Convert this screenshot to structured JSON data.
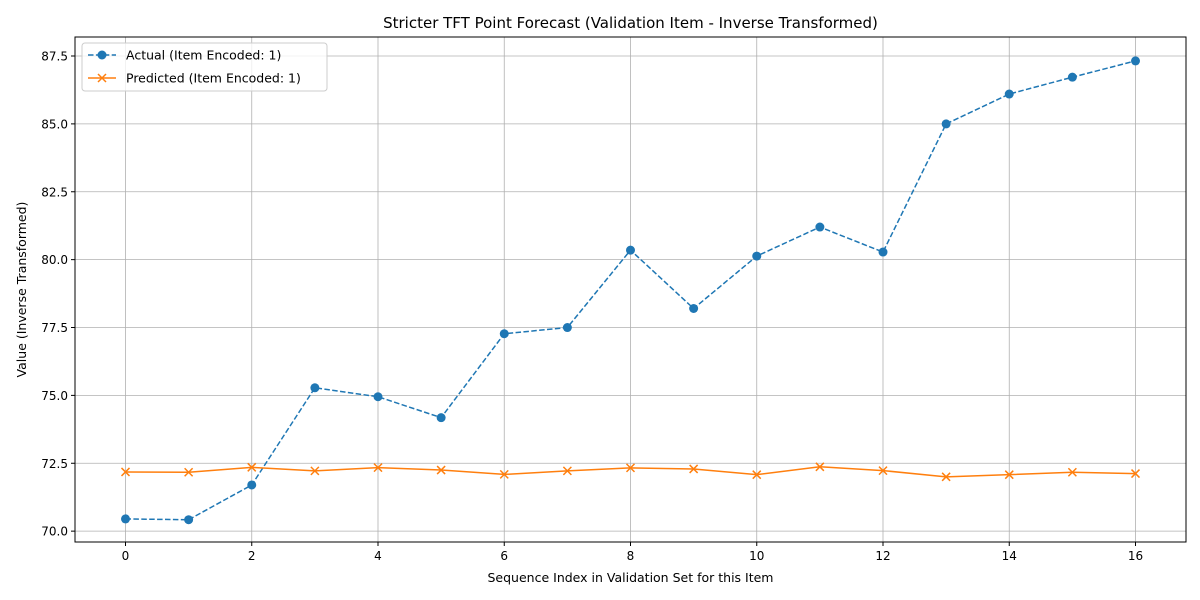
{
  "chart_data": {
    "type": "line",
    "title": "Stricter TFT Point Forecast (Validation Item - Inverse Transformed)",
    "xlabel": "Sequence Index in Validation Set for this Item",
    "ylabel": "Value (Inverse Transformed)",
    "xlim": [
      -0.8,
      16.8
    ],
    "ylim": [
      69.6,
      88.2
    ],
    "xticks": [
      0,
      2,
      4,
      6,
      8,
      10,
      12,
      14,
      16
    ],
    "xtick_labels": [
      "0",
      "2",
      "4",
      "6",
      "8",
      "10",
      "12",
      "14",
      "16"
    ],
    "yticks": [
      70.0,
      72.5,
      75.0,
      77.5,
      80.0,
      82.5,
      85.0,
      87.5
    ],
    "ytick_labels": [
      "70.0",
      "72.5",
      "75.0",
      "77.5",
      "80.0",
      "82.5",
      "85.0",
      "87.5"
    ],
    "grid": true,
    "legend_position": "top-left",
    "x": [
      0,
      1,
      2,
      3,
      4,
      5,
      6,
      7,
      8,
      9,
      10,
      11,
      12,
      13,
      14,
      15,
      16
    ],
    "series": [
      {
        "name": "Actual (Item Encoded: 1)",
        "color": "#1f77b4",
        "line_style": "dashed",
        "marker": "circle",
        "values": [
          70.45,
          70.42,
          71.7,
          75.28,
          74.95,
          74.18,
          77.27,
          77.5,
          80.35,
          78.2,
          80.13,
          81.2,
          80.28,
          85.0,
          86.1,
          86.72,
          87.32
        ]
      },
      {
        "name": "Predicted (Item Encoded: 1)",
        "color": "#ff7f0e",
        "line_style": "solid",
        "marker": "x",
        "values": [
          72.18,
          72.17,
          72.35,
          72.22,
          72.34,
          72.25,
          72.09,
          72.22,
          72.33,
          72.29,
          72.08,
          72.37,
          72.23,
          72.0,
          72.08,
          72.17,
          72.12
        ]
      }
    ]
  }
}
